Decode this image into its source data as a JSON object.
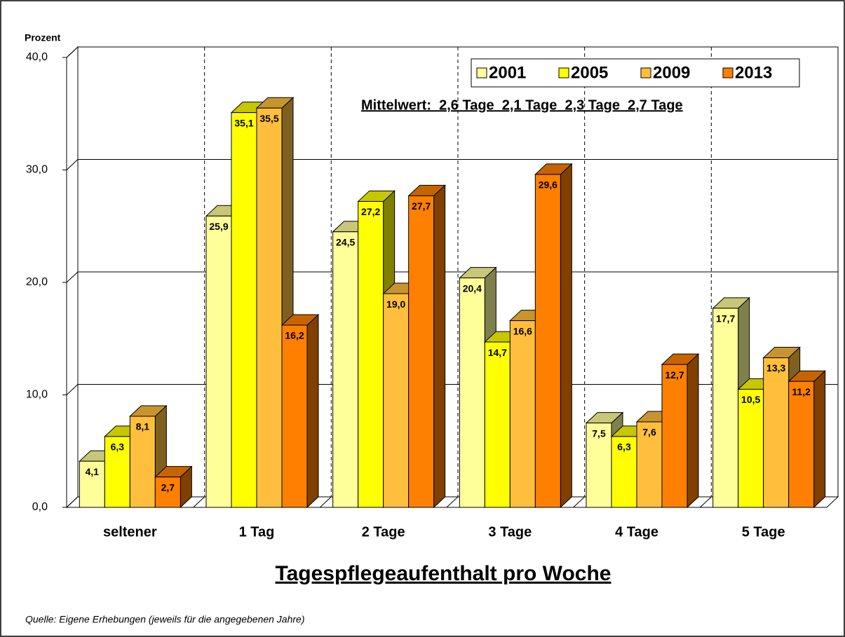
{
  "chart_data": {
    "type": "bar3d",
    "y_label": "Prozent",
    "x_label": "Tagespflegeaufenthalt pro Woche",
    "annotation": "Mittelwert:  2,6 Tage  2,1 Tage  2,3 Tage  2,7 Tage",
    "source": "Quelle: Eigene Erhebungen (jeweils für die angegebenen Jahre)",
    "categories": [
      "seltener",
      "1 Tag",
      "2 Tage",
      "3 Tage",
      "4 Tage",
      "5 Tage"
    ],
    "series": [
      {
        "name": "2001",
        "color": "#ffff99",
        "values": [
          4.1,
          25.9,
          24.5,
          20.4,
          7.5,
          17.7
        ],
        "value_labels": [
          "4,1",
          "25,9",
          "24,5",
          "20,4",
          "7,5",
          "17,7"
        ]
      },
      {
        "name": "2005",
        "color": "#ffff00",
        "values": [
          6.3,
          35.1,
          27.2,
          14.7,
          6.3,
          10.5
        ],
        "value_labels": [
          "6,3",
          "35,1",
          "27,2",
          "14,7",
          "6,3",
          "10,5"
        ]
      },
      {
        "name": "2009",
        "color": "#ffbf3c",
        "values": [
          8.1,
          35.5,
          19.0,
          16.6,
          7.6,
          13.3
        ],
        "value_labels": [
          "8,1",
          "35,5",
          "19,0",
          "16,6",
          "7,6",
          "13,3"
        ]
      },
      {
        "name": "2013",
        "color": "#ff8000",
        "values": [
          2.7,
          16.2,
          27.7,
          29.6,
          12.7,
          11.2
        ],
        "value_labels": [
          "2,7",
          "16,2",
          "27,7",
          "29,6",
          "12,7",
          "11,2"
        ]
      }
    ],
    "ylim": [
      0,
      40
    ],
    "yticks": [
      {
        "value": 0,
        "label": "0,0"
      },
      {
        "value": 10,
        "label": "10,0"
      },
      {
        "value": 20,
        "label": "20,0"
      },
      {
        "value": 30,
        "label": "30,0"
      },
      {
        "value": 40,
        "label": "40,0"
      }
    ],
    "grid": true,
    "legend": "upper right"
  }
}
